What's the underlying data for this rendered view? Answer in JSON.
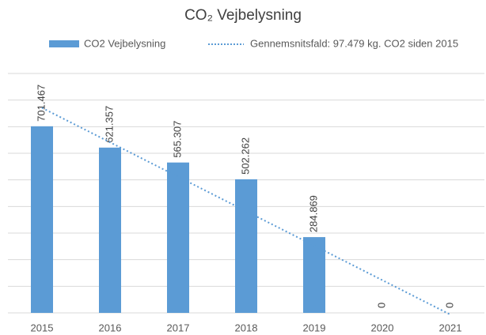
{
  "chart_data": {
    "type": "bar",
    "title": "CO₂ Vejbelysning",
    "categories": [
      "2015",
      "2016",
      "2017",
      "2018",
      "2019",
      "2020",
      "2021"
    ],
    "series": [
      {
        "name": "CO2 Vejbelysning",
        "color": "#5b9bd5",
        "values": [
          701467,
          621357,
          565307,
          502262,
          284869,
          0,
          0
        ],
        "value_labels": [
          "701.467",
          "621.357",
          "565.307",
          "502.262",
          "284.869",
          "0",
          "0"
        ]
      },
      {
        "name": "Gennemsnitsfald: 97.479 kg. CO2 siden 2015",
        "type": "line",
        "style": "dotted",
        "color": "#5b9bd5",
        "values": [
          770848,
          641292,
          511736,
          382180,
          252624,
          123068,
          -6488
        ]
      }
    ],
    "ylim": [
      0,
      900000
    ],
    "yticks": [
      0,
      100000,
      200000,
      300000,
      400000,
      500000,
      600000,
      700000,
      800000,
      900000
    ],
    "grid": true,
    "legend": "top"
  }
}
